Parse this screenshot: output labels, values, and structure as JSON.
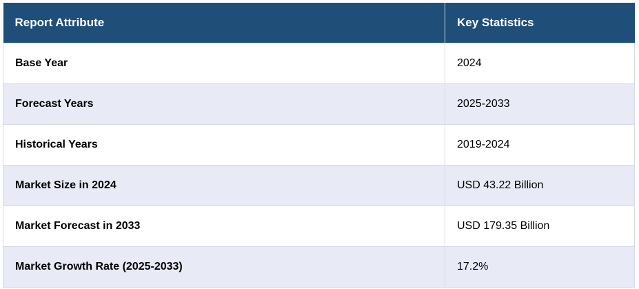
{
  "table": {
    "headers": [
      "Report Attribute",
      "Key Statistics"
    ],
    "rows": [
      {
        "attribute": "Base Year",
        "value": "2024"
      },
      {
        "attribute": "Forecast Years",
        "value": "2025-2033"
      },
      {
        "attribute": "Historical Years",
        "value": "2019-2024"
      },
      {
        "attribute": "Market Size in 2024",
        "value": "USD 43.22 Billion"
      },
      {
        "attribute": "Market Forecast in 2033",
        "value": "USD 179.35 Billion"
      },
      {
        "attribute": "Market Growth Rate (2025-2033)",
        "value": "17.2%"
      }
    ]
  },
  "colors": {
    "header_bg": "#1f4e79",
    "header_text": "#ffffff",
    "stripe_bg": "#e8eaf6",
    "border": "#d6d9e6"
  }
}
